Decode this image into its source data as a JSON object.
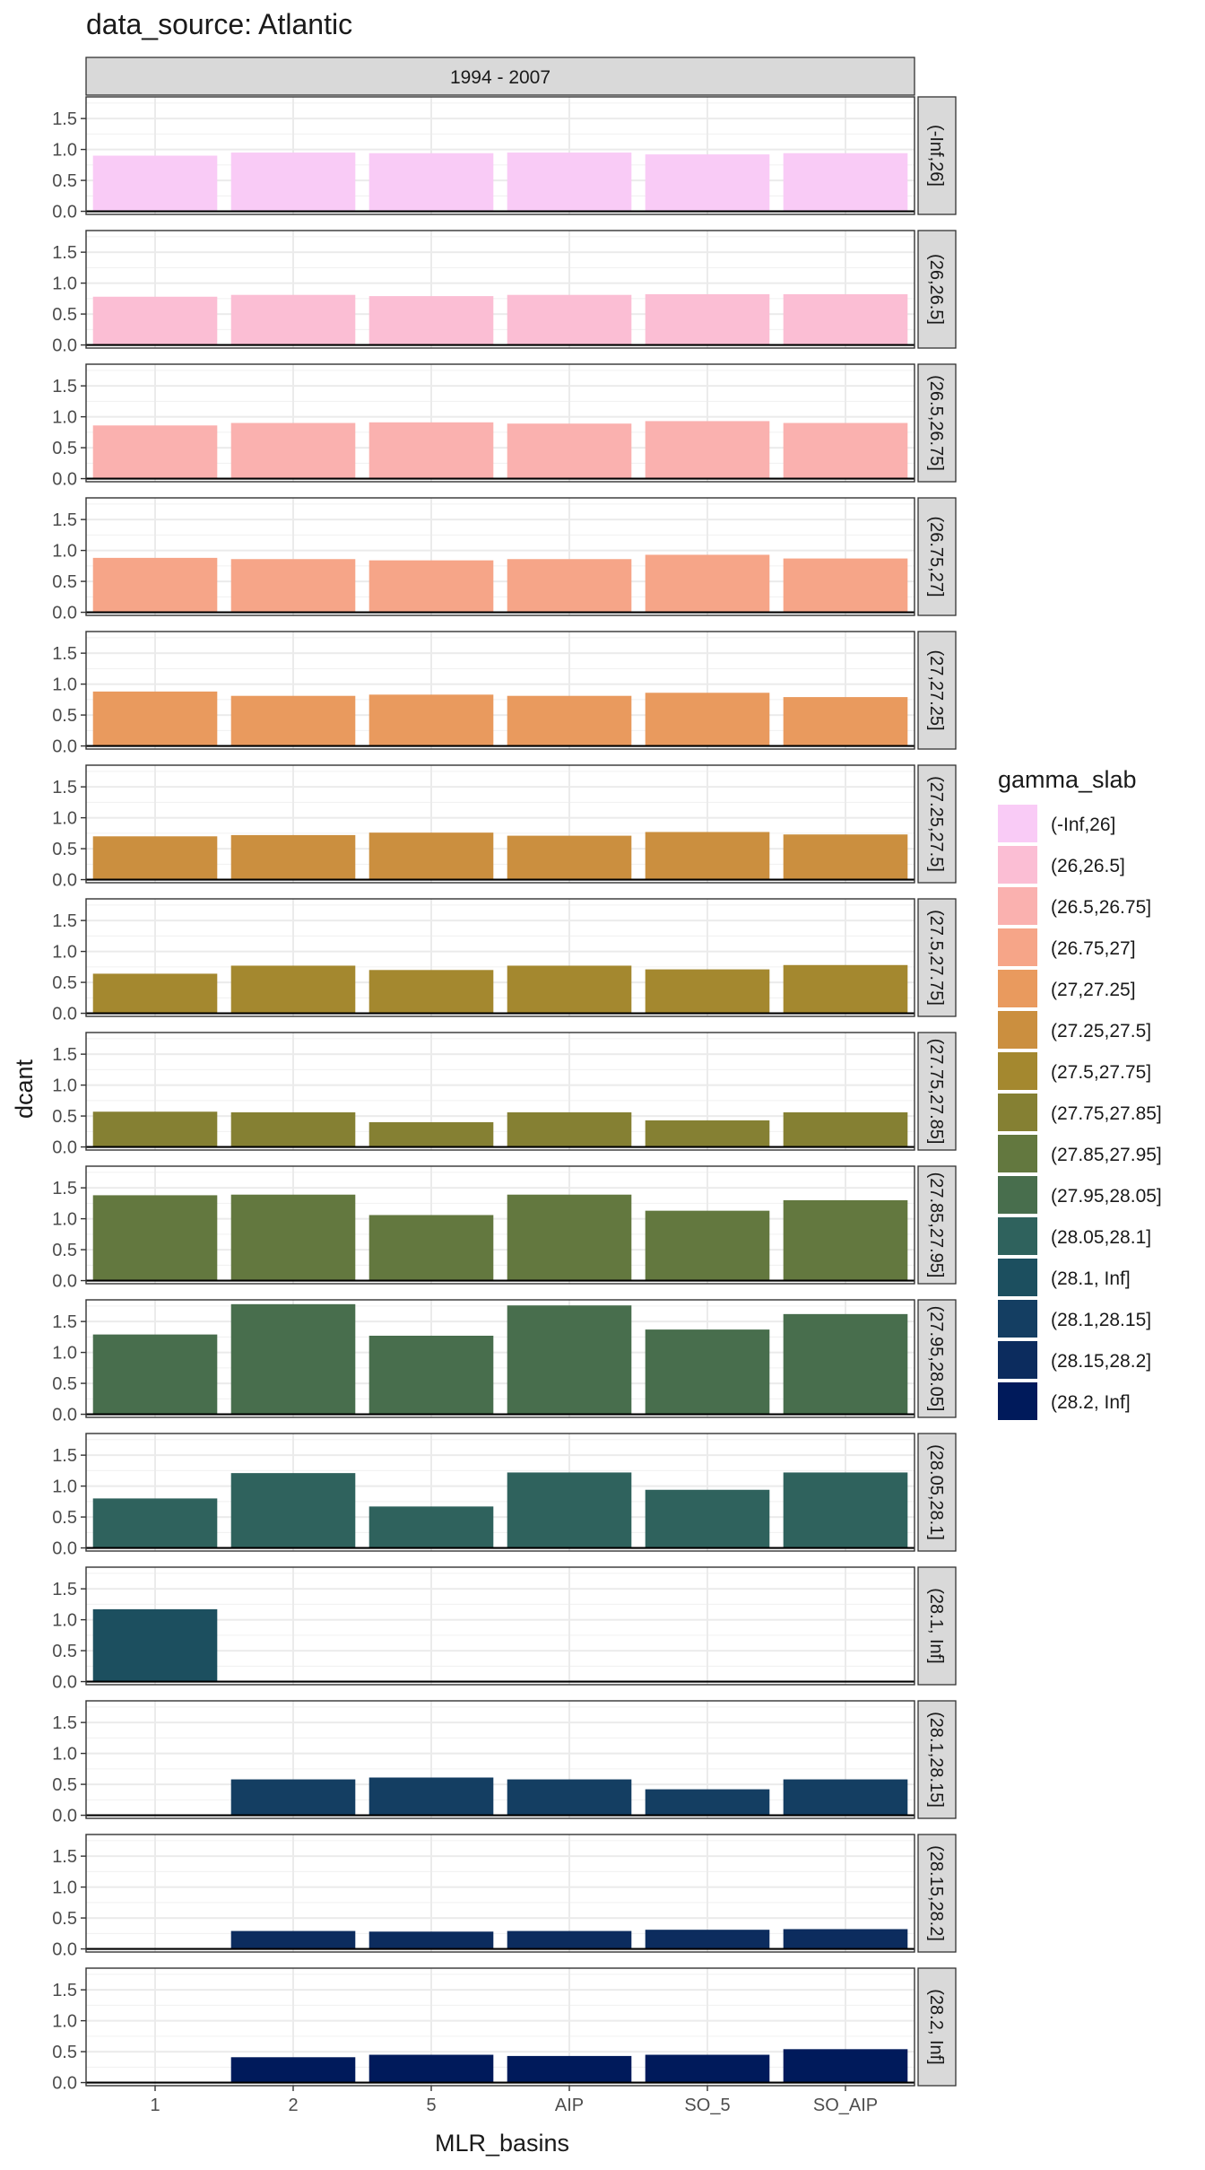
{
  "chart_data": {
    "type": "bar",
    "title": "data_source: Atlantic",
    "column_strip": "1994 - 2007",
    "xlabel": "MLR_basins",
    "ylabel": "dcant",
    "categories": [
      "1",
      "2",
      "5",
      "AIP",
      "SO_5",
      "SO_AIP"
    ],
    "ylim": [
      -0.05,
      1.85
    ],
    "yticks": [
      0.0,
      0.5,
      1.0,
      1.5
    ],
    "ytick_labels": [
      "0.0",
      "0.5",
      "1.0",
      "1.5"
    ],
    "grid": true,
    "legend_title": "gamma_slab",
    "legend_position": "right",
    "facets": [
      {
        "label": "(-Inf,26]",
        "color": "#F9CBF6",
        "values": [
          0.9,
          0.95,
          0.94,
          0.95,
          0.92,
          0.94
        ]
      },
      {
        "label": "(26,26.5]",
        "color": "#FBBED4",
        "values": [
          0.78,
          0.81,
          0.79,
          0.81,
          0.82,
          0.82
        ]
      },
      {
        "label": "(26.5,26.75]",
        "color": "#FAB1AF",
        "values": [
          0.86,
          0.9,
          0.91,
          0.89,
          0.93,
          0.9
        ]
      },
      {
        "label": "(26.75,27]",
        "color": "#F6A588",
        "values": [
          0.88,
          0.86,
          0.84,
          0.86,
          0.93,
          0.87
        ]
      },
      {
        "label": "(27,27.25]",
        "color": "#E99A5E",
        "values": [
          0.88,
          0.81,
          0.83,
          0.81,
          0.86,
          0.79
        ]
      },
      {
        "label": "(27.25,27.5]",
        "color": "#CB8F3F",
        "values": [
          0.7,
          0.72,
          0.76,
          0.71,
          0.77,
          0.73
        ]
      },
      {
        "label": "(27.5,27.75]",
        "color": "#A4882F",
        "values": [
          0.64,
          0.77,
          0.7,
          0.77,
          0.71,
          0.78
        ]
      },
      {
        "label": "(27.75,27.85]",
        "color": "#858033",
        "values": [
          0.57,
          0.56,
          0.4,
          0.56,
          0.43,
          0.56
        ]
      },
      {
        "label": "(27.85,27.95]",
        "color": "#63783F",
        "values": [
          1.38,
          1.39,
          1.06,
          1.39,
          1.13,
          1.3
        ]
      },
      {
        "label": "(27.95,28.05]",
        "color": "#486E4D",
        "values": [
          1.29,
          1.78,
          1.27,
          1.76,
          1.37,
          1.62
        ]
      },
      {
        "label": "(28.05,28.1]",
        "color": "#2F625D",
        "values": [
          0.8,
          1.21,
          0.67,
          1.22,
          0.94,
          1.22
        ]
      },
      {
        "label": "(28.1, Inf]",
        "color": "#1C4F5F",
        "values": [
          1.17,
          null,
          null,
          null,
          null,
          null
        ]
      },
      {
        "label": "(28.1,28.15]",
        "color": "#143E62",
        "values": [
          null,
          0.58,
          0.61,
          0.58,
          0.42,
          0.58
        ]
      },
      {
        "label": "(28.15,28.2]",
        "color": "#0C2C5E",
        "values": [
          null,
          0.29,
          0.28,
          0.29,
          0.31,
          0.32
        ]
      },
      {
        "label": "(28.2, Inf]",
        "color": "#001A5B",
        "values": [
          null,
          0.41,
          0.45,
          0.43,
          0.45,
          0.54
        ]
      }
    ]
  }
}
